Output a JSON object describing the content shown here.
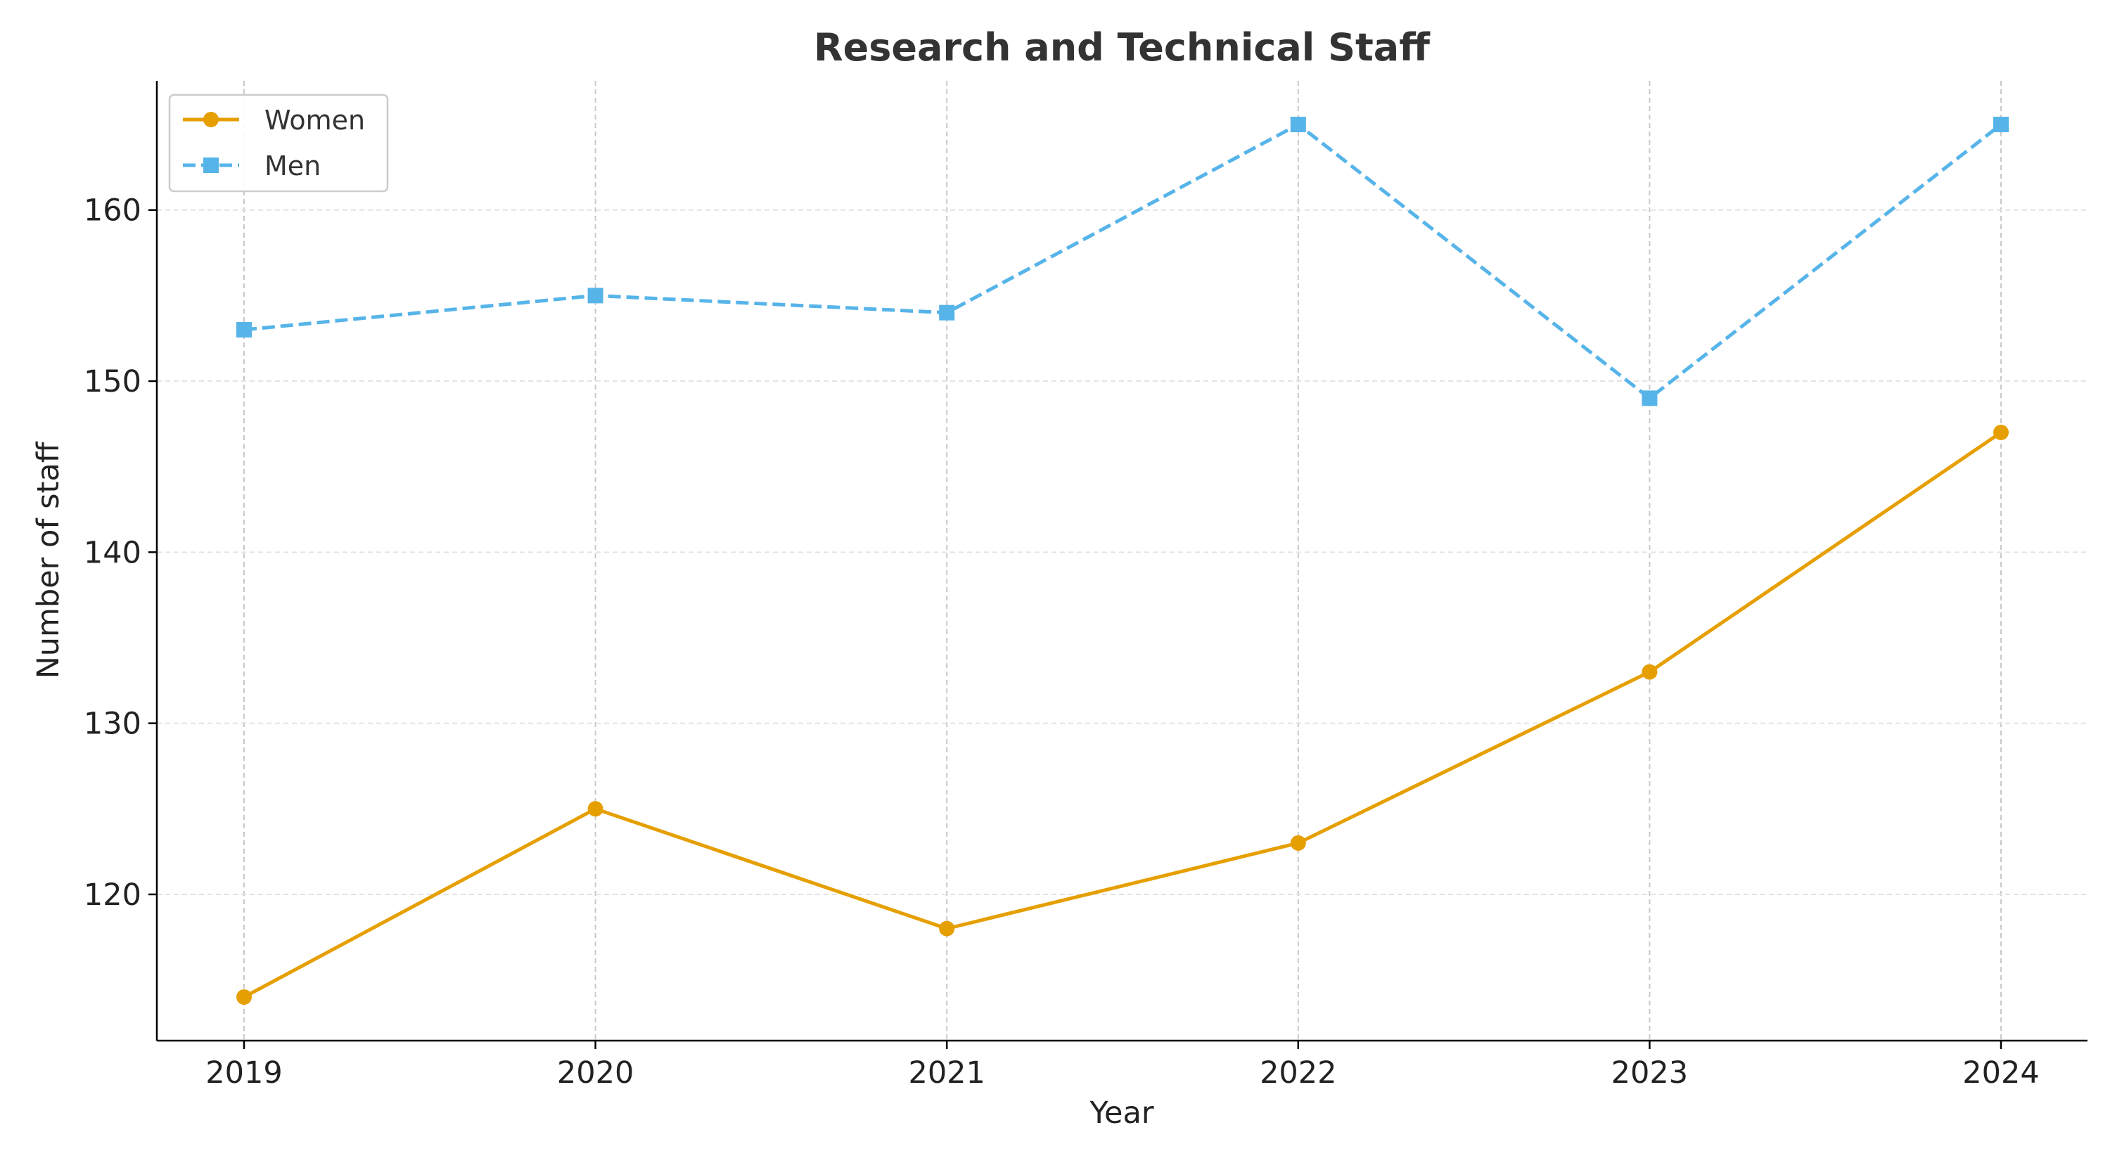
{
  "chart_data": {
    "type": "line",
    "title": "Research and Technical Staff",
    "xlabel": "Year",
    "ylabel": "Number of staff",
    "categories": [
      "2019",
      "2020",
      "2021",
      "2022",
      "2023",
      "2024"
    ],
    "yticks": [
      120,
      130,
      140,
      150,
      160
    ],
    "ylim": [
      111.45,
      167.55
    ],
    "grid": true,
    "legend_position": "top-left",
    "series": [
      {
        "name": "Women",
        "values": [
          114,
          125,
          118,
          123,
          133,
          147
        ],
        "color": "#E69F00",
        "line_style": "solid",
        "marker": "circle"
      },
      {
        "name": "Men",
        "values": [
          153,
          155,
          154,
          165,
          149,
          165
        ],
        "color": "#56B4E9",
        "line_style": "dashed",
        "marker": "square"
      }
    ]
  }
}
